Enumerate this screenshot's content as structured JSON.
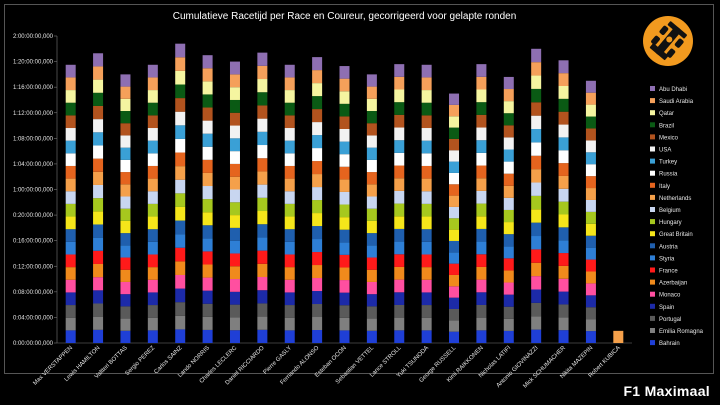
{
  "brand": {
    "text": "F1 Maximaal",
    "logo": "f1-car-logo-icon",
    "accent": "#f29a1f"
  },
  "chart_data": {
    "type": "bar",
    "stacked": true,
    "title": "Cumulatieve Racetijd per Race en Coureur, gecorrigeerd voor gelapte ronden",
    "xlabel": "",
    "ylabel": "",
    "y_unit": "hours",
    "ylim": [
      0,
      48
    ],
    "yticks": [
      0,
      4,
      8,
      12,
      16,
      20,
      24,
      28,
      32,
      36,
      40,
      44,
      48
    ],
    "ytick_labels": [
      "0:00:00:00,000",
      "0:04:00:00,000",
      "0:08:00:00,000",
      "0:12:00:00,000",
      "0:16:00:00,000",
      "0:20:00:00,000",
      "1:00:00:00,000",
      "1:04:00:00,000",
      "1:08:00:00,000",
      "1:12:00:00,000",
      "1:16:00:00,000",
      "1:20:00:00,000",
      "2:00:00:00,000"
    ],
    "grid": false,
    "legend_position": "right",
    "categories": [
      "Max VERSTAPPEN",
      "Lewis HAMILTON",
      "Valtteri BOTTAS",
      "Sergio PEREZ",
      "Carlos SAINZ",
      "Lando NORRIS",
      "Charles LECLERC",
      "Daniel RICCIARDO",
      "Pierre GASLY",
      "Fernando ALONSO",
      "Esteban OCON",
      "Sebastian VETTEL",
      "Lance STROLL",
      "Yuki TSUNODA",
      "George RUSSELL",
      "Kimi RAIKKONEN",
      "Nicholas LATIFI",
      "Antonio GIOVINAZZI",
      "Mick SCHUMACHER",
      "Nikita MAZEPIN",
      "Robert KUBICA"
    ],
    "totals": [
      43.5,
      45.3,
      42.0,
      43.5,
      46.8,
      45.0,
      44.0,
      45.4,
      43.5,
      44.7,
      43.3,
      42.0,
      43.6,
      43.5,
      39.0,
      43.6,
      41.6,
      46.0,
      44.2,
      41.0,
      1.9
    ],
    "series": [
      {
        "name": "Bahrain",
        "color": "#1f3fd6"
      },
      {
        "name": "Emilia Romagna",
        "color": "#7f7f7f"
      },
      {
        "name": "Portugal",
        "color": "#5a5a5a"
      },
      {
        "name": "Spain",
        "color": "#1c2aa8"
      },
      {
        "name": "Monaco",
        "color": "#ff4fa0"
      },
      {
        "name": "Azerbaijan",
        "color": "#f08a1c"
      },
      {
        "name": "France",
        "color": "#ff1a1a"
      },
      {
        "name": "Styria",
        "color": "#2e7fd6"
      },
      {
        "name": "Austria",
        "color": "#1f5fae"
      },
      {
        "name": "Great Britain",
        "color": "#f5e61a"
      },
      {
        "name": "Hungary",
        "color": "#a6c81e"
      },
      {
        "name": "Belgium",
        "color": "#c8d6f0"
      },
      {
        "name": "Netherlands",
        "color": "#f5a04a"
      },
      {
        "name": "Italy",
        "color": "#e5641e"
      },
      {
        "name": "Russia",
        "color": "#ffffff"
      },
      {
        "name": "Turkey",
        "color": "#3aa0d6"
      },
      {
        "name": "USA",
        "color": "#f2f2f2"
      },
      {
        "name": "Mexico",
        "color": "#b2531e"
      },
      {
        "name": "Brazil",
        "color": "#0a5a14"
      },
      {
        "name": "Qatar",
        "color": "#f5f5a0"
      },
      {
        "name": "Saudi Arabia",
        "color": "#f5a05a"
      },
      {
        "name": "Abu Dhabi",
        "color": "#8e6fb2"
      }
    ]
  }
}
